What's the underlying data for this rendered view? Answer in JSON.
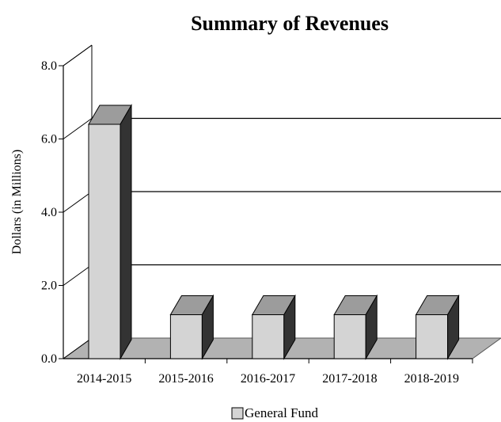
{
  "chart_data": {
    "type": "bar",
    "style": "3d",
    "title": "Summary of Revenues",
    "xlabel": "",
    "ylabel": "Dollars (in Millions)",
    "ylim": [
      0,
      8
    ],
    "yticks": [
      "0.0",
      "2.0",
      "4.0",
      "6.0",
      "8.0"
    ],
    "categories": [
      "2014-2015",
      "2015-2016",
      "2016-2017",
      "2017-2018",
      "2018-2019"
    ],
    "series": [
      {
        "name": "General Fund",
        "values": [
          6.4,
          1.2,
          1.2,
          1.2,
          1.2
        ]
      }
    ],
    "grid": true,
    "legend_position": "bottom"
  },
  "colors": {
    "bar_front": "#d4d4d4",
    "bar_top": "#9c9c9c",
    "bar_side": "#333333",
    "floor": "#b2b2b2",
    "gridline": "#000000"
  }
}
